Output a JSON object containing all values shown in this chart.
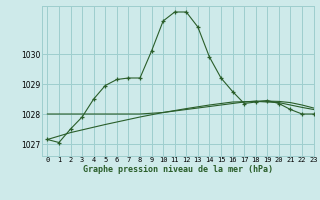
{
  "title": "Graphe pression niveau de la mer (hPa)",
  "background_color": "#ceeaea",
  "grid_color": "#9ecece",
  "line_color": "#2a5e2a",
  "xlim": [
    -0.5,
    23
  ],
  "ylim": [
    1026.6,
    1031.6
  ],
  "yticks": [
    1027,
    1028,
    1029,
    1030
  ],
  "xticks": [
    0,
    1,
    2,
    3,
    4,
    5,
    6,
    7,
    8,
    9,
    10,
    11,
    12,
    13,
    14,
    15,
    16,
    17,
    18,
    19,
    20,
    21,
    22,
    23
  ],
  "series1_x": [
    0,
    1,
    2,
    3,
    4,
    5,
    6,
    7,
    8,
    9,
    10,
    11,
    12,
    13,
    14,
    15,
    16,
    17,
    18,
    19,
    20,
    21,
    22,
    23
  ],
  "series1_y": [
    1027.15,
    1027.05,
    1027.5,
    1027.9,
    1028.5,
    1028.95,
    1029.15,
    1029.2,
    1029.2,
    1030.1,
    1031.1,
    1031.4,
    1031.4,
    1030.9,
    1029.9,
    1029.2,
    1028.75,
    1028.35,
    1028.4,
    1028.45,
    1028.35,
    1028.15,
    1028.0,
    1028.0
  ],
  "series2_x": [
    0,
    2,
    5,
    8,
    10,
    12,
    14,
    16,
    17,
    18,
    19,
    20,
    21,
    22,
    23
  ],
  "series2_y": [
    1028.0,
    1028.0,
    1028.0,
    1028.0,
    1028.05,
    1028.15,
    1028.25,
    1028.35,
    1028.4,
    1028.43,
    1028.43,
    1028.42,
    1028.38,
    1028.3,
    1028.2
  ],
  "series3_x": [
    0,
    2,
    5,
    8,
    10,
    12,
    14,
    16,
    18,
    20,
    22,
    23
  ],
  "series3_y": [
    1027.15,
    1027.38,
    1027.65,
    1027.9,
    1028.05,
    1028.18,
    1028.3,
    1028.4,
    1028.42,
    1028.38,
    1028.22,
    1028.15
  ]
}
